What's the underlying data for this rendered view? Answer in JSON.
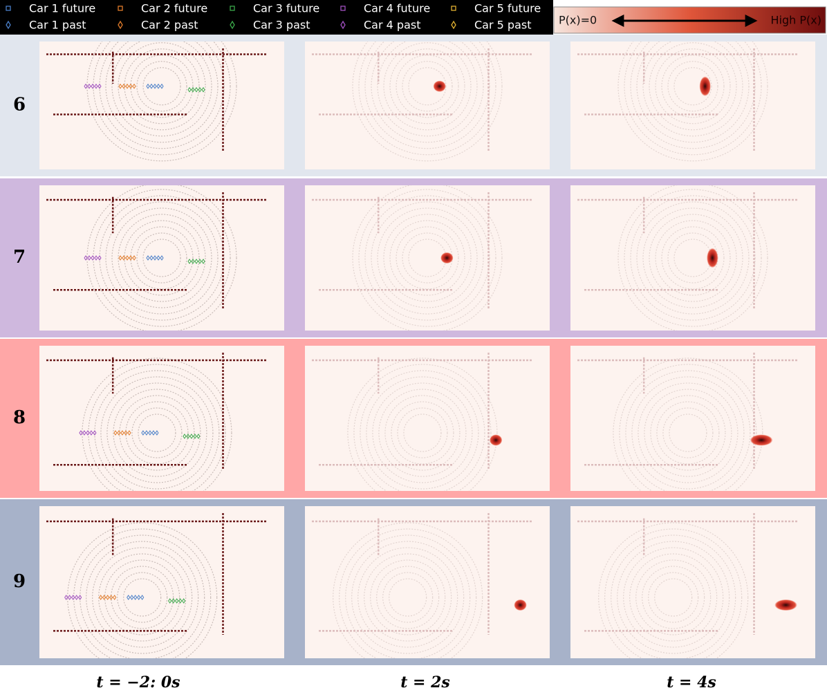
{
  "legend": {
    "entries": [
      {
        "future": "Car 1 future",
        "past": "Car 1 past"
      },
      {
        "future": "Car 2 future",
        "past": "Car 2 past"
      },
      {
        "future": "Car 3 future",
        "past": "Car 3 past"
      },
      {
        "future": "Car 4 future",
        "past": "Car 4 past"
      },
      {
        "future": "Car 5 future",
        "past": "Car 5 past"
      }
    ]
  },
  "colorbar": {
    "low": "P(x)=0",
    "high": "High P(x)"
  },
  "rows": [
    "6",
    "7",
    "8",
    "9"
  ],
  "columns": [
    "t = −2: 0s",
    "t = 2s",
    "t = 4s"
  ]
}
